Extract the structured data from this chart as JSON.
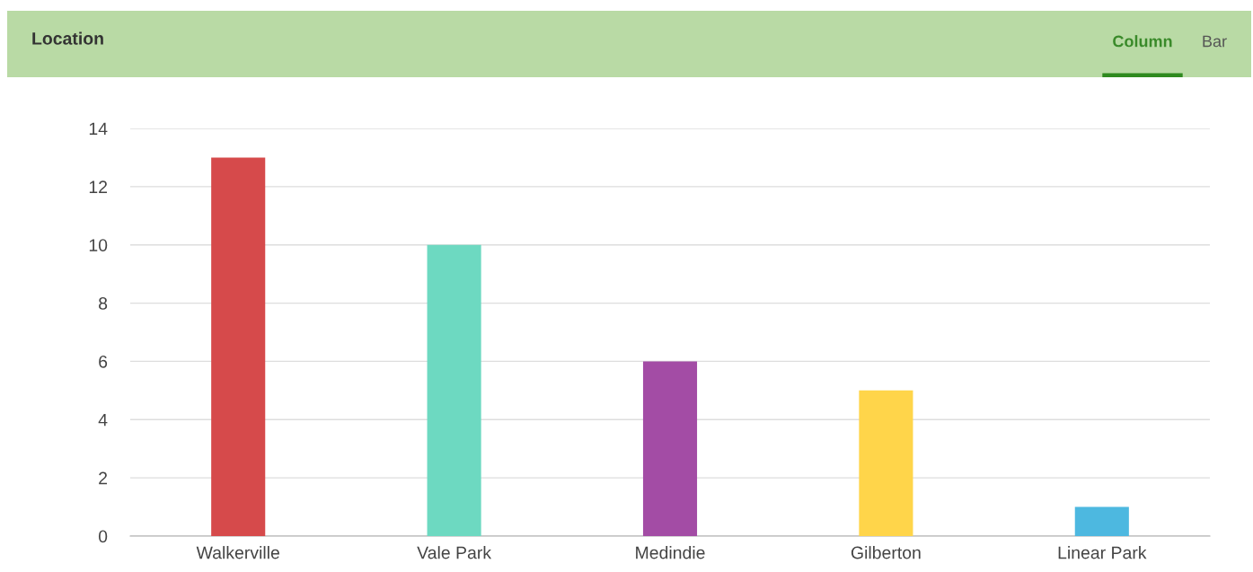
{
  "chart_data": {
    "type": "bar",
    "title": "Location",
    "annotations": [
      "Column",
      "Bar"
    ],
    "categories": [
      "Walkerville",
      "Vale Park",
      "Medindie",
      "Gilberton",
      "Linear Park"
    ],
    "values": [
      13,
      10,
      6,
      5,
      1
    ],
    "colors": [
      "#d64a4b",
      "#6dd9c1",
      "#a34ca5",
      "#ffd54a",
      "#4db8e0"
    ],
    "ylim": [
      0,
      14
    ],
    "yticks": [
      0,
      2,
      4,
      6,
      8,
      10,
      12,
      14
    ],
    "grid": "y"
  }
}
